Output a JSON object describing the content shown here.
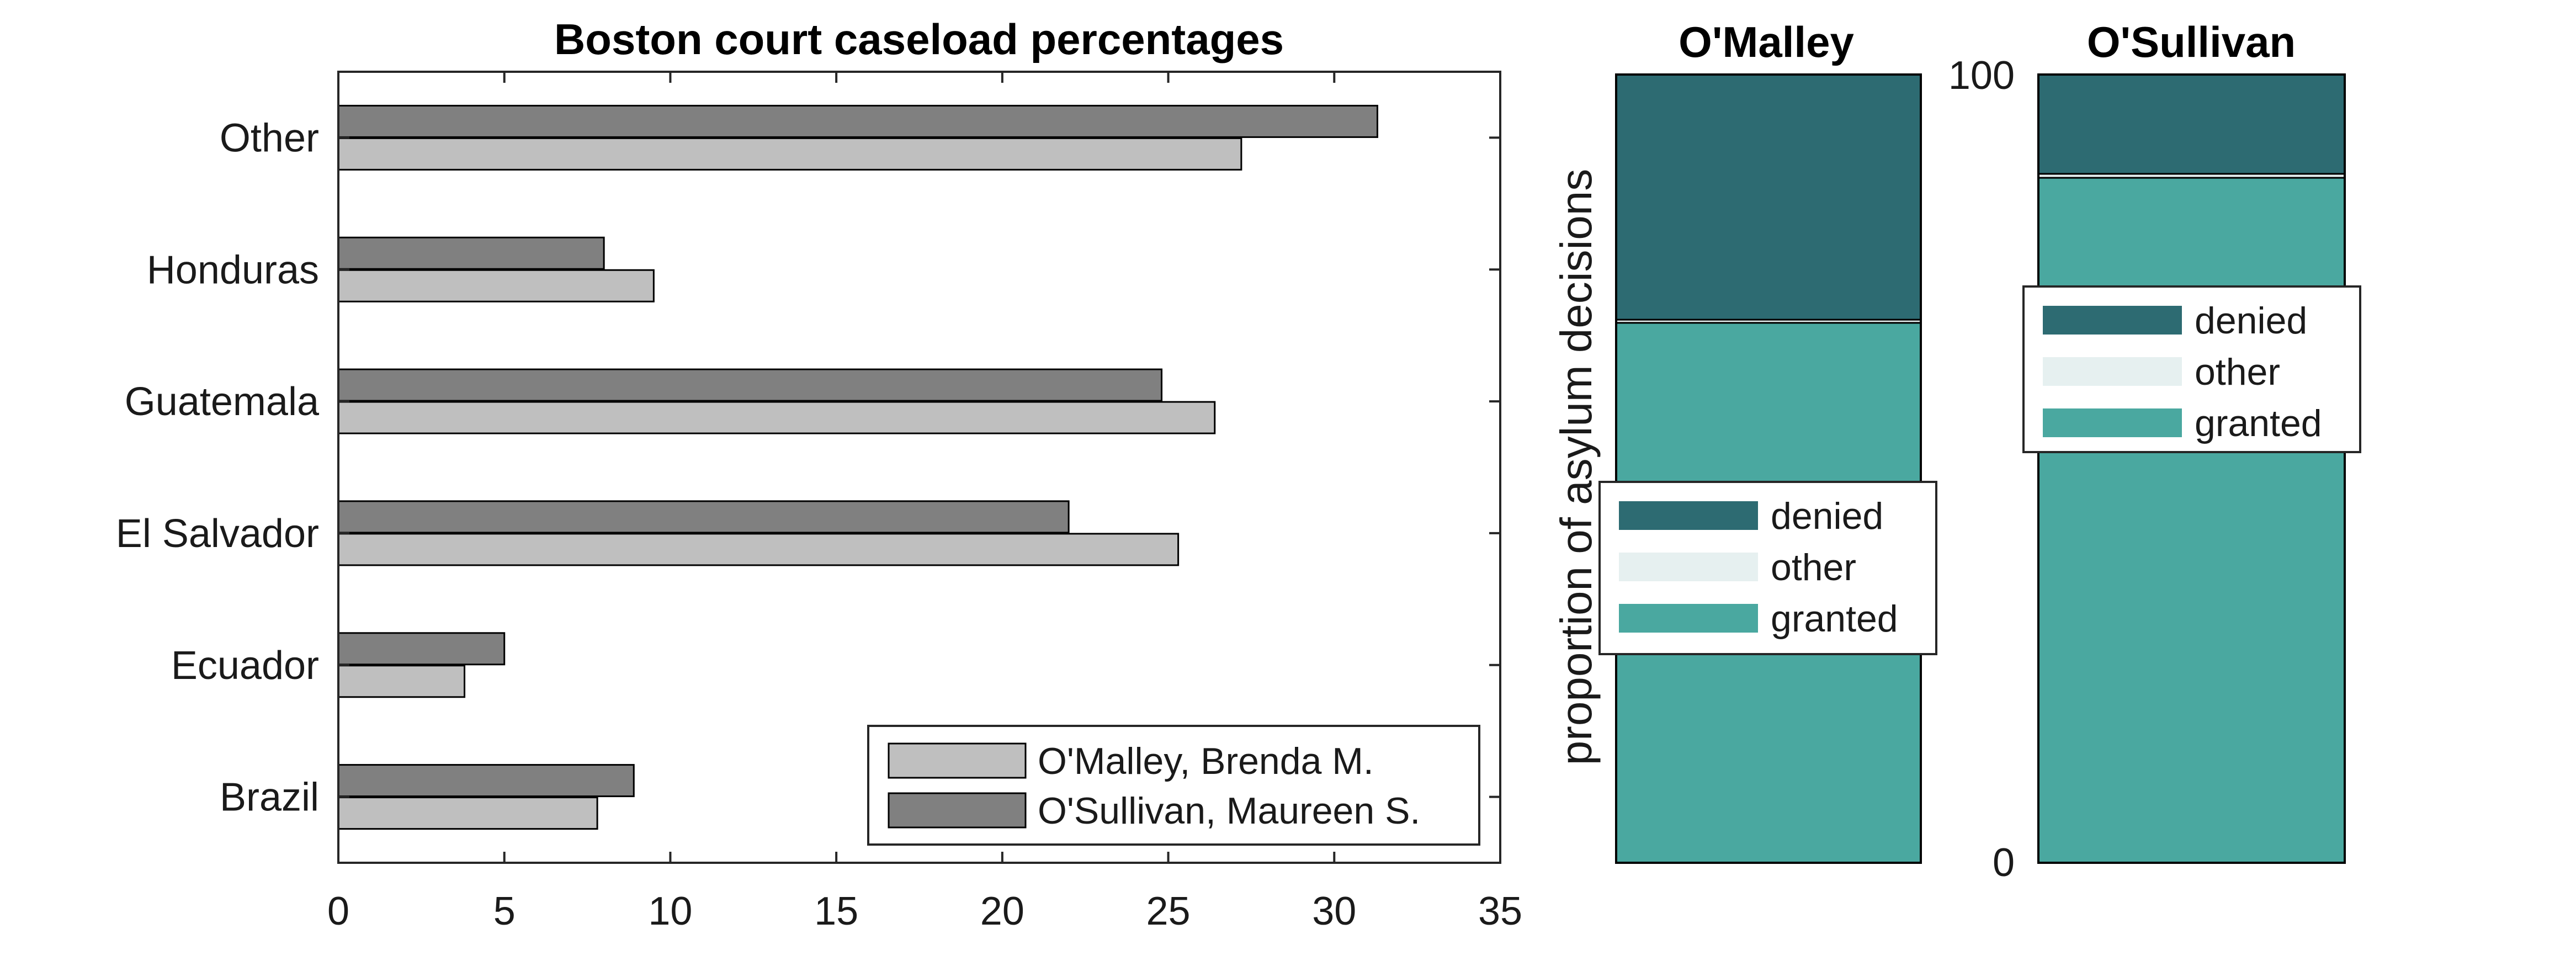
{
  "chart_data": [
    {
      "type": "bar",
      "orientation": "horizontal",
      "title": "Boston court caseload percentages",
      "categories": [
        "Brazil",
        "Ecuador",
        "El Salvador",
        "Guatemala",
        "Honduras",
        "Other"
      ],
      "series": [
        {
          "name": "O'Malley, Brenda M.",
          "color": "#bfbfbf",
          "values": [
            7.8,
            3.8,
            25.3,
            26.4,
            9.5,
            27.2
          ]
        },
        {
          "name": "O'Sullivan, Maureen S.",
          "color": "#808080",
          "values": [
            8.9,
            5.0,
            22.0,
            24.8,
            8.0,
            31.3
          ]
        }
      ],
      "xlim": [
        0,
        35
      ],
      "xticks": [
        "0",
        "5",
        "10",
        "15",
        "20",
        "25",
        "30",
        "35"
      ],
      "grid": false,
      "legend": "bottom-right"
    },
    {
      "type": "bar",
      "stacked": true,
      "title": "O'Malley",
      "ylabel": "proportion of asylum decisions",
      "ylim": [
        0,
        100
      ],
      "series": [
        {
          "name": "granted",
          "color": "#4aa8a0",
          "value": 68.5
        },
        {
          "name": "other",
          "color": "#e6f0f0",
          "value": 0.4
        },
        {
          "name": "denied",
          "color": "#2d6b72",
          "value": 31.1
        }
      ],
      "legend_order": [
        "denied",
        "other",
        "granted"
      ],
      "legend": "center"
    },
    {
      "type": "bar",
      "stacked": true,
      "title": "O'Sullivan",
      "ylim": [
        0,
        100
      ],
      "yticks": [
        "0",
        "100"
      ],
      "series": [
        {
          "name": "granted",
          "color": "#4aa8a0",
          "value": 86.9
        },
        {
          "name": "other",
          "color": "#e6f0f0",
          "value": 0.5
        },
        {
          "name": "denied",
          "color": "#2d6b72",
          "value": 12.6
        }
      ],
      "legend_order": [
        "denied",
        "other",
        "granted"
      ],
      "legend": "upper-center"
    }
  ]
}
